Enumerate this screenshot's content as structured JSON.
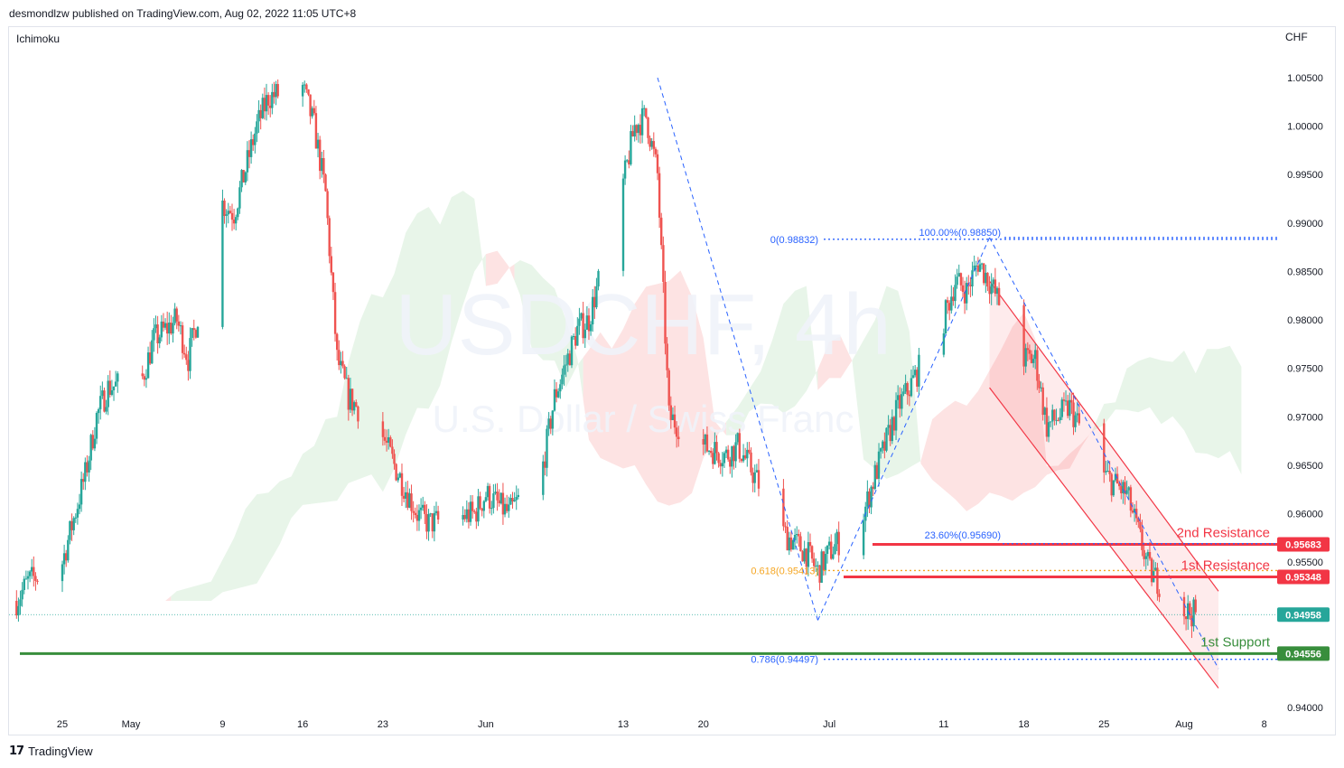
{
  "header": {
    "publish_line": "desmondlzw published on TradingView.com, Aug 02, 2022 11:05 UTC+8"
  },
  "chart": {
    "indicator": "Ichimoku",
    "currency": "CHF",
    "watermark_symbol": "USDCHF, 4h",
    "watermark_name": "U.S. Dollar / Swiss Franc"
  },
  "footer": {
    "brand": "TradingView",
    "logo_icon": "tradingview-logo-icon"
  },
  "colors": {
    "bull": "#26a69a",
    "bear": "#ef5350",
    "cloud_green": "#e8f5e9",
    "cloud_red": "#fde3e3",
    "resistance": "#f23645",
    "support": "#388e3c",
    "fib": "#2962ff",
    "fib_gold": "#f5a623",
    "channel": "#f23645"
  },
  "chart_data": {
    "type": "candlestick",
    "title": "USDCHF, 4h",
    "subtitle": "U.S. Dollar / Swiss Franc",
    "ylim": [
      0.9385,
      1.0065
    ],
    "y_ticks": [
      "1.00500",
      "1.00000",
      "0.99500",
      "0.99000",
      "0.98500",
      "0.98000",
      "0.97500",
      "0.97000",
      "0.96500",
      "0.96000",
      "0.95500",
      "0.94000"
    ],
    "x_ticks": [
      "25",
      "May",
      "9",
      "16",
      "23",
      "Jun",
      "13",
      "20",
      "Jul",
      "11",
      "18",
      "25",
      "Aug",
      "8"
    ],
    "x_tick_dates": [
      "2022-04-25",
      "2022-05-01",
      "2022-05-09",
      "2022-05-16",
      "2022-05-23",
      "2022-06-01",
      "2022-06-13",
      "2022-06-20",
      "2022-07-01",
      "2022-07-11",
      "2022-07-18",
      "2022-07-25",
      "2022-08-01",
      "2022-08-08"
    ],
    "price_path": [
      [
        "2022-04-21",
        0.951
      ],
      [
        "2022-04-22",
        0.953
      ],
      [
        "2022-04-25",
        0.955
      ],
      [
        "2022-04-27",
        0.964
      ],
      [
        "2022-04-28",
        0.97
      ],
      [
        "2022-04-29",
        0.973
      ],
      [
        "2022-05-02",
        0.974
      ],
      [
        "2022-05-03",
        0.978
      ],
      [
        "2022-05-05",
        0.98
      ],
      [
        "2022-05-06",
        0.976
      ],
      [
        "2022-05-09",
        0.992
      ],
      [
        "2022-05-10",
        0.991
      ],
      [
        "2022-05-12",
        1.0
      ],
      [
        "2022-05-13",
        1.003
      ],
      [
        "2022-05-16",
        1.004
      ],
      [
        "2022-05-17",
        1.0
      ],
      [
        "2022-05-18",
        0.993
      ],
      [
        "2022-05-19",
        0.976
      ],
      [
        "2022-05-20",
        0.972
      ],
      [
        "2022-05-23",
        0.968
      ],
      [
        "2022-05-24",
        0.965
      ],
      [
        "2022-05-26",
        0.96
      ],
      [
        "2022-05-27",
        0.959
      ],
      [
        "2022-05-31",
        0.96
      ],
      [
        "2022-06-01",
        0.962
      ],
      [
        "2022-06-03",
        0.96
      ],
      [
        "2022-06-06",
        0.965
      ],
      [
        "2022-06-07",
        0.972
      ],
      [
        "2022-06-09",
        0.979
      ],
      [
        "2022-06-10",
        0.98
      ],
      [
        "2022-06-13",
        0.994
      ],
      [
        "2022-06-14",
        1.0
      ],
      [
        "2022-06-15",
        1.001
      ],
      [
        "2022-06-16",
        0.995
      ],
      [
        "2022-06-17",
        0.97
      ],
      [
        "2022-06-20",
        0.967
      ],
      [
        "2022-06-22",
        0.966
      ],
      [
        "2022-06-23",
        0.967
      ],
      [
        "2022-06-24",
        0.965
      ],
      [
        "2022-06-27",
        0.958
      ],
      [
        "2022-06-28",
        0.957
      ],
      [
        "2022-06-29",
        0.956
      ],
      [
        "2022-06-30",
        0.954
      ],
      [
        "2022-07-01",
        0.956
      ],
      [
        "2022-07-04",
        0.96
      ],
      [
        "2022-07-05",
        0.964
      ],
      [
        "2022-07-07",
        0.971
      ],
      [
        "2022-07-08",
        0.973
      ],
      [
        "2022-07-11",
        0.98
      ],
      [
        "2022-07-12",
        0.984
      ],
      [
        "2022-07-13",
        0.983
      ],
      [
        "2022-07-14",
        0.986
      ],
      [
        "2022-07-15",
        0.984
      ],
      [
        "2022-07-18",
        0.976
      ],
      [
        "2022-07-19",
        0.976
      ],
      [
        "2022-07-20",
        0.969
      ],
      [
        "2022-07-21",
        0.97
      ],
      [
        "2022-07-22",
        0.971
      ],
      [
        "2022-07-25",
        0.964
      ],
      [
        "2022-07-26",
        0.963
      ],
      [
        "2022-07-27",
        0.962
      ],
      [
        "2022-07-28",
        0.958
      ],
      [
        "2022-07-29",
        0.954
      ],
      [
        "2022-08-01",
        0.95
      ],
      [
        "2022-08-02",
        0.9496
      ]
    ],
    "fibonacci": [
      {
        "label": "0(0.98832)",
        "value": 0.98832
      },
      {
        "label": "100.00%(0.98850)",
        "value": 0.9885
      },
      {
        "label": "23.60%(0.95690)",
        "value": 0.9569
      },
      {
        "label": "0.618(0.95413)",
        "value": 0.95413
      },
      {
        "label": "0.786(0.94497)",
        "value": 0.94497
      }
    ],
    "levels": [
      {
        "name": "2nd Resistance",
        "value": 0.95683,
        "badge": "0.95683",
        "kind": "resistance"
      },
      {
        "name": "1st Resistance",
        "value": 0.95348,
        "badge": "0.95348",
        "kind": "resistance"
      },
      {
        "name": "1st Support",
        "value": 0.94556,
        "badge": "0.94556",
        "kind": "support"
      }
    ],
    "last_price": {
      "value": 0.94958,
      "badge": "0.94958"
    },
    "descending_channel": {
      "upper": [
        [
          "2022-07-15",
          0.984
        ],
        [
          "2022-08-04",
          0.952
        ]
      ],
      "lower": [
        [
          "2022-07-15",
          0.973
        ],
        [
          "2022-08-04",
          0.942
        ]
      ]
    },
    "projection_lines": [
      [
        [
          "2022-06-16",
          1.005
        ],
        [
          "2022-06-30",
          0.949
        ]
      ],
      [
        [
          "2022-06-30",
          0.949
        ],
        [
          "2022-07-15",
          0.9885
        ]
      ],
      [
        [
          "2022-07-15",
          0.9885
        ],
        [
          "2022-08-04",
          0.944
        ]
      ]
    ],
    "grid": false,
    "legend": "none"
  }
}
